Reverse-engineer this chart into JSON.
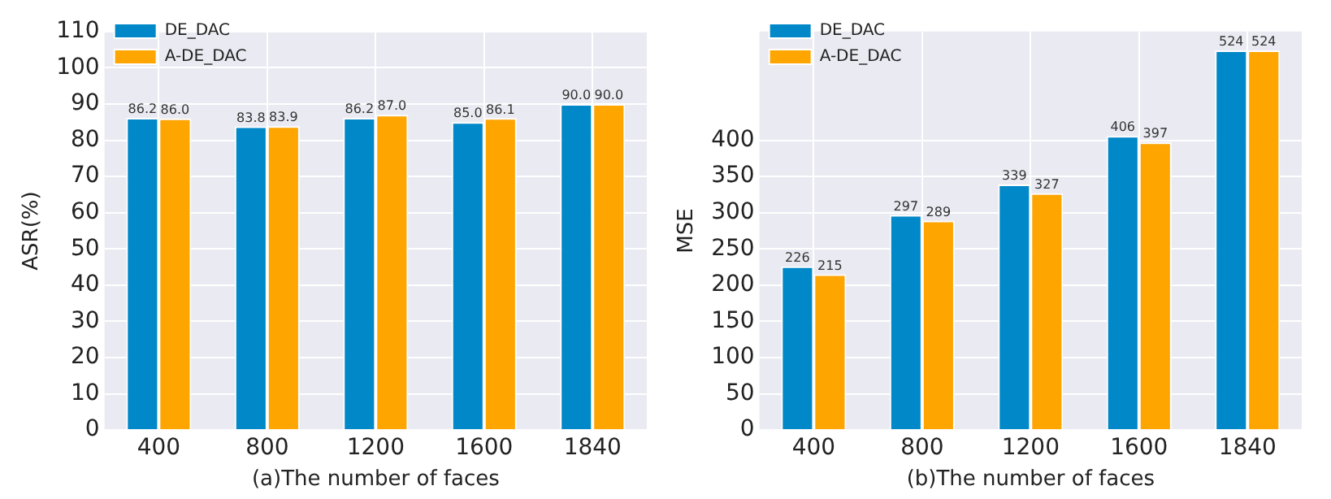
{
  "chart_data": [
    {
      "type": "bar",
      "xlabel": "(a)The number of faces",
      "ylabel": "ASR(%)",
      "categories": [
        "400",
        "800",
        "1200",
        "1600",
        "1840"
      ],
      "series": [
        {
          "name": "DE_DAC",
          "color": "#0088c8",
          "values": [
            86.2,
            83.8,
            86.2,
            85,
            90
          ],
          "value_labels": [
            "86.2",
            "83.8",
            "86.2",
            "85.0",
            "90.0"
          ]
        },
        {
          "name": "A-DE_DAC",
          "color": "#ffa500",
          "values": [
            86,
            83.9,
            87,
            86.1,
            90
          ],
          "value_labels": [
            "86.0",
            "83.9",
            "87.0",
            "86.1",
            "90.0"
          ]
        }
      ],
      "ylim": [
        0,
        110
      ],
      "yticks": [
        0,
        10,
        20,
        30,
        40,
        50,
        60,
        70,
        80,
        90,
        100,
        110
      ],
      "grid": true,
      "legend": "top left"
    },
    {
      "type": "bar",
      "xlabel": "(b)The number of faces",
      "ylabel": "MSE",
      "categories": [
        "400",
        "800",
        "1200",
        "1600",
        "1840"
      ],
      "series": [
        {
          "name": "DE_DAC",
          "color": "#0088c8",
          "values": [
            226,
            297,
            339,
            406,
            524
          ]
        },
        {
          "name": "A-DE_DAC",
          "color": "#ffa500",
          "values": [
            215,
            289,
            327,
            397,
            524
          ]
        }
      ],
      "ylim": [
        0,
        550
      ],
      "yticks": [
        0,
        50,
        100,
        150,
        200,
        250,
        300,
        350,
        400
      ],
      "grid": true,
      "legend": "top left",
      "data_labels": true
    }
  ]
}
